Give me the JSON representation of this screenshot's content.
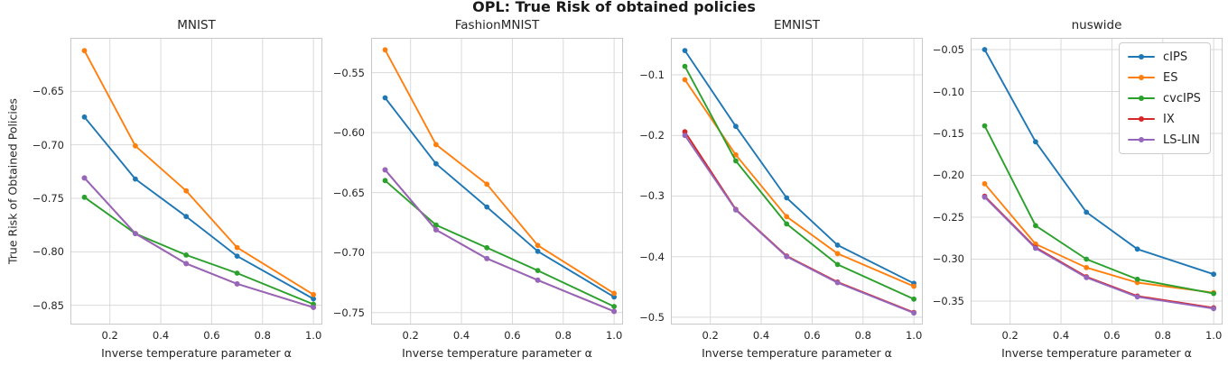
{
  "figure": {
    "suptitle": "OPL: True Risk of obtained policies",
    "ylabel": "True Risk of Obtained Policies"
  },
  "style": {
    "grid_color": "#d9d9d9",
    "spine_color": "#c9c9c9",
    "text_color": "#262626",
    "background": "#ffffff"
  },
  "legend": {
    "position": "upper right (nuswide panel)",
    "entries": [
      {
        "label": "cIPS",
        "color": "#1f77b4"
      },
      {
        "label": "ES",
        "color": "#ff7f0e"
      },
      {
        "label": "cvcIPS",
        "color": "#2ca02c"
      },
      {
        "label": "IX",
        "color": "#d62728"
      },
      {
        "label": "LS-LIN",
        "color": "#9467bd"
      }
    ]
  },
  "chart_data": [
    {
      "type": "line",
      "title": "MNIST",
      "xlabel": "Inverse temperature parameter α",
      "x": [
        0.1,
        0.3,
        0.5,
        0.7,
        1.0
      ],
      "xlim": [
        0.045,
        1.035
      ],
      "xticks": [
        0.2,
        0.4,
        0.6,
        0.8,
        1.0
      ],
      "xtick_labels": [
        "0.2",
        "0.4",
        "0.6",
        "0.8",
        "1.0"
      ],
      "ylim": [
        -0.868,
        -0.6
      ],
      "yticks": [
        -0.65,
        -0.7,
        -0.75,
        -0.8,
        -0.85
      ],
      "ytick_labels": [
        "−0.65",
        "−0.70",
        "−0.75",
        "−0.80",
        "−0.85"
      ],
      "grid": true,
      "series": [
        {
          "name": "cIPS",
          "color": "#1f77b4",
          "values": [
            -0.674,
            -0.732,
            -0.767,
            -0.804,
            -0.844
          ]
        },
        {
          "name": "ES",
          "color": "#ff7f0e",
          "values": [
            -0.612,
            -0.701,
            -0.743,
            -0.796,
            -0.84
          ]
        },
        {
          "name": "cvcIPS",
          "color": "#2ca02c",
          "values": [
            -0.749,
            -0.783,
            -0.803,
            -0.82,
            -0.849
          ]
        },
        {
          "name": "IX",
          "color": "#d62728",
          "values": [
            -0.731,
            -0.783,
            -0.811,
            -0.83,
            -0.852
          ]
        },
        {
          "name": "LS-LIN",
          "color": "#9467bd",
          "values": [
            -0.731,
            -0.783,
            -0.811,
            -0.83,
            -0.852
          ]
        }
      ]
    },
    {
      "type": "line",
      "title": "FashionMNIST",
      "xlabel": "Inverse temperature parameter α",
      "x": [
        0.1,
        0.3,
        0.5,
        0.7,
        1.0
      ],
      "xlim": [
        0.045,
        1.035
      ],
      "xticks": [
        0.2,
        0.4,
        0.6,
        0.8,
        1.0
      ],
      "xtick_labels": [
        "0.2",
        "0.4",
        "0.6",
        "0.8",
        "1.0"
      ],
      "ylim": [
        -0.76,
        -0.521
      ],
      "yticks": [
        -0.55,
        -0.6,
        -0.65,
        -0.7,
        -0.75
      ],
      "ytick_labels": [
        "−0.55",
        "−0.60",
        "−0.65",
        "−0.70",
        "−0.75"
      ],
      "grid": true,
      "series": [
        {
          "name": "cIPS",
          "color": "#1f77b4",
          "values": [
            -0.571,
            -0.626,
            -0.662,
            -0.699,
            -0.737
          ]
        },
        {
          "name": "ES",
          "color": "#ff7f0e",
          "values": [
            -0.531,
            -0.61,
            -0.643,
            -0.694,
            -0.734
          ]
        },
        {
          "name": "cvcIPS",
          "color": "#2ca02c",
          "values": [
            -0.64,
            -0.677,
            -0.696,
            -0.715,
            -0.745
          ]
        },
        {
          "name": "IX",
          "color": "#d62728",
          "values": [
            -0.631,
            -0.681,
            -0.705,
            -0.723,
            -0.749
          ]
        },
        {
          "name": "LS-LIN",
          "color": "#9467bd",
          "values": [
            -0.631,
            -0.681,
            -0.705,
            -0.723,
            -0.749
          ]
        }
      ]
    },
    {
      "type": "line",
      "title": "EMNIST",
      "xlabel": "Inverse temperature parameter α",
      "x": [
        0.1,
        0.3,
        0.5,
        0.7,
        1.0
      ],
      "xlim": [
        0.045,
        1.035
      ],
      "xticks": [
        0.2,
        0.4,
        0.6,
        0.8,
        1.0
      ],
      "xtick_labels": [
        "0.2",
        "0.4",
        "0.6",
        "0.8",
        "1.0"
      ],
      "ylim": [
        -0.512,
        -0.039
      ],
      "yticks": [
        -0.1,
        -0.2,
        -0.3,
        -0.4,
        -0.5
      ],
      "ytick_labels": [
        "−0.1",
        "−0.2",
        "−0.3",
        "−0.4",
        "−0.5"
      ],
      "grid": true,
      "series": [
        {
          "name": "cIPS",
          "color": "#1f77b4",
          "values": [
            -0.06,
            -0.185,
            -0.303,
            -0.381,
            -0.444
          ]
        },
        {
          "name": "ES",
          "color": "#ff7f0e",
          "values": [
            -0.108,
            -0.232,
            -0.334,
            -0.395,
            -0.449
          ]
        },
        {
          "name": "cvcIPS",
          "color": "#2ca02c",
          "values": [
            -0.086,
            -0.242,
            -0.346,
            -0.413,
            -0.47
          ]
        },
        {
          "name": "IX",
          "color": "#d62728",
          "values": [
            -0.194,
            -0.322,
            -0.399,
            -0.442,
            -0.492
          ]
        },
        {
          "name": "LS-LIN",
          "color": "#9467bd",
          "values": [
            -0.2,
            -0.323,
            -0.4,
            -0.443,
            -0.493
          ]
        }
      ]
    },
    {
      "type": "line",
      "title": "nuswide",
      "xlabel": "Inverse temperature parameter α",
      "x": [
        0.1,
        0.3,
        0.5,
        0.7,
        1.0
      ],
      "xlim": [
        0.045,
        1.035
      ],
      "xticks": [
        0.2,
        0.4,
        0.6,
        0.8,
        1.0
      ],
      "xtick_labels": [
        "0.2",
        "0.4",
        "0.6",
        "0.8",
        "1.0"
      ],
      "ylim": [
        -0.378,
        -0.036
      ],
      "yticks": [
        -0.05,
        -0.1,
        -0.15,
        -0.2,
        -0.25,
        -0.3,
        -0.35
      ],
      "ytick_labels": [
        "−0.05",
        "−0.10",
        "−0.15",
        "−0.20",
        "−0.25",
        "−0.30",
        "−0.35"
      ],
      "grid": true,
      "series": [
        {
          "name": "cIPS",
          "color": "#1f77b4",
          "values": [
            -0.05,
            -0.16,
            -0.244,
            -0.288,
            -0.318
          ]
        },
        {
          "name": "ES",
          "color": "#ff7f0e",
          "values": [
            -0.21,
            -0.282,
            -0.31,
            -0.328,
            -0.34
          ]
        },
        {
          "name": "cvcIPS",
          "color": "#2ca02c",
          "values": [
            -0.141,
            -0.26,
            -0.3,
            -0.324,
            -0.341
          ]
        },
        {
          "name": "IX",
          "color": "#d62728",
          "values": [
            -0.225,
            -0.286,
            -0.321,
            -0.344,
            -0.358
          ]
        },
        {
          "name": "LS-LIN",
          "color": "#9467bd",
          "values": [
            -0.226,
            -0.287,
            -0.322,
            -0.345,
            -0.359
          ]
        }
      ]
    }
  ]
}
